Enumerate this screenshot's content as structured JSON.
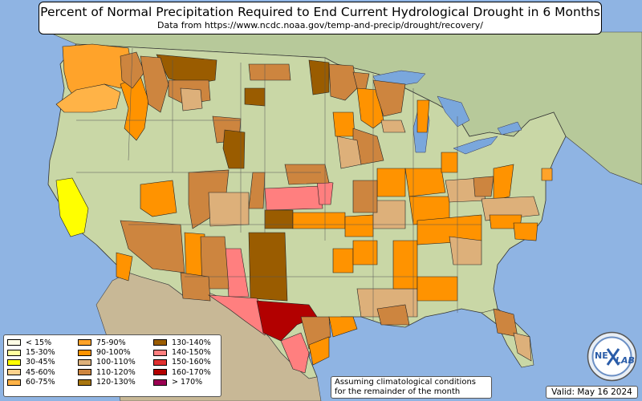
{
  "title": "Percent of Normal Precipitation Required to End Current Hydrological Drought in 6 Months",
  "subtitle": "Data from https://www.ncdc.noaa.gov/temp-and-precip/drought/recovery/",
  "legend": [
    {
      "label": "< 15%",
      "color": "#fffde6"
    },
    {
      "label": "15-30%",
      "color": "#ffff9e"
    },
    {
      "label": "30-45%",
      "color": "#ffff00"
    },
    {
      "label": "45-60%",
      "color": "#ffd28c"
    },
    {
      "label": "60-75%",
      "color": "#ffb347"
    },
    {
      "label": "75-90%",
      "color": "#ffa32a"
    },
    {
      "label": "90-100%",
      "color": "#ff9300"
    },
    {
      "label": "100-110%",
      "color": "#ddb07a"
    },
    {
      "label": "110-120%",
      "color": "#cd853f"
    },
    {
      "label": "120-130%",
      "color": "#a8750f"
    },
    {
      "label": "130-140%",
      "color": "#9a5c00"
    },
    {
      "label": "140-150%",
      "color": "#ff7f7f"
    },
    {
      "label": "150-160%",
      "color": "#e03030"
    },
    {
      "label": "160-170%",
      "color": "#b20000"
    },
    {
      "label": "> 170%",
      "color": "#9b0052"
    }
  ],
  "note": {
    "line1": "Assuming climatological conditions",
    "line2": "for the remainder of the month"
  },
  "valid_label": "Valid: May 16 2024",
  "logo_text": {
    "ne": "NE",
    "lab": "LAB"
  },
  "colors": {
    "ocean": "#8fb4e3",
    "land": "#c9d7a6",
    "canada": "#b7c99a",
    "mexico": "#c8b896",
    "lakes": "#7aa7dc"
  }
}
